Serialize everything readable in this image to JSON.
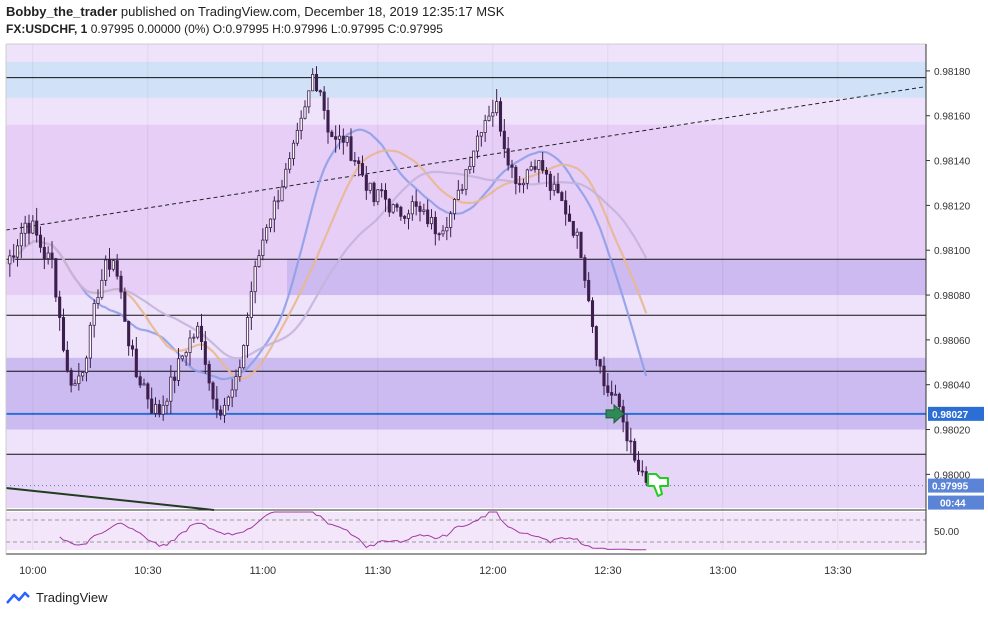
{
  "header": {
    "author": "Bobby_the_trader",
    "published_text": "published on TradingView.com, December 18, 2019 12:35:17 MSK",
    "symbol": "FX:USDCHF, 1",
    "quote": "0.97995 0.00000 (0%) O:0.97995 H:0.97996 L:0.97995 C:0.97995"
  },
  "footer": {
    "brand": "TradingView"
  },
  "colors": {
    "candle": "#3d1f4d",
    "resistance_zone": "#cfe0f7",
    "purple_zone": "#e5ccf7",
    "support_zone": "#c9b8f0",
    "blue_ma": "#8fa0e8",
    "orange_ma": "#e8b890",
    "gray_ma": "#c4b4dc",
    "rsi": "#a03aa0",
    "level_line": "#2b6fd6",
    "arrow": "#2e8b57",
    "thumb": "#22cc22"
  },
  "icons": [
    "right-arrow-icon",
    "thumbs-down-icon",
    "tradingview-logo-icon"
  ],
  "chart_data": {
    "type": "candlestick",
    "symbol": "FX:USDCHF",
    "interval": "1",
    "x_ticks": [
      "10:00",
      "10:30",
      "11:00",
      "11:30",
      "12:00",
      "12:30",
      "13:00",
      "13:30"
    ],
    "y_ticks": [
      "0.98180",
      "0.98160",
      "0.98140",
      "0.98120",
      "0.98100",
      "0.98080",
      "0.98060",
      "0.98040",
      "0.98020",
      "0.98000"
    ],
    "ylim": [
      0.97985,
      0.98192
    ],
    "x_start": "09:53",
    "x_end": "13:53",
    "current_price": "0.97995",
    "time_to_close": "00:44",
    "level_price": "0.98027",
    "rsi_level": "50.00",
    "close_path": [
      [
        "09:53",
        0.98094
      ],
      [
        "09:55",
        0.981
      ],
      [
        "09:58",
        0.98112
      ],
      [
        "10:00",
        0.9811
      ],
      [
        "10:03",
        0.98098
      ],
      [
        "10:05",
        0.98095
      ],
      [
        "10:07",
        0.9807
      ],
      [
        "10:09",
        0.98045
      ],
      [
        "10:11",
        0.9804
      ],
      [
        "10:13",
        0.98048
      ],
      [
        "10:15",
        0.98063
      ],
      [
        "10:17",
        0.98082
      ],
      [
        "10:19",
        0.98092
      ],
      [
        "10:21",
        0.98096
      ],
      [
        "10:23",
        0.9808
      ],
      [
        "10:25",
        0.9806
      ],
      [
        "10:27",
        0.98044
      ],
      [
        "10:29",
        0.9804
      ],
      [
        "10:31",
        0.9803
      ],
      [
        "10:33",
        0.98028
      ],
      [
        "10:35",
        0.98036
      ],
      [
        "10:37",
        0.98044
      ],
      [
        "10:39",
        0.98053
      ],
      [
        "10:41",
        0.9806
      ],
      [
        "10:43",
        0.98064
      ],
      [
        "10:45",
        0.98052
      ],
      [
        "10:47",
        0.98034
      ],
      [
        "10:49",
        0.9803
      ],
      [
        "10:51",
        0.98033
      ],
      [
        "10:53",
        0.9804
      ],
      [
        "10:55",
        0.98058
      ],
      [
        "10:57",
        0.98082
      ],
      [
        "10:59",
        0.98098
      ],
      [
        "11:01",
        0.98112
      ],
      [
        "11:03",
        0.9812
      ],
      [
        "11:05",
        0.9813
      ],
      [
        "11:07",
        0.98138
      ],
      [
        "11:09",
        0.9815
      ],
      [
        "11:11",
        0.98162
      ],
      [
        "11:13",
        0.98178
      ],
      [
        "11:15",
        0.98172
      ],
      [
        "11:17",
        0.98155
      ],
      [
        "11:19",
        0.98148
      ],
      [
        "11:21",
        0.9815
      ],
      [
        "11:23",
        0.98144
      ],
      [
        "11:25",
        0.98138
      ],
      [
        "11:27",
        0.9813
      ],
      [
        "11:29",
        0.98122
      ],
      [
        "11:31",
        0.98126
      ],
      [
        "11:33",
        0.9812
      ],
      [
        "11:35",
        0.98116
      ],
      [
        "11:37",
        0.98118
      ],
      [
        "11:39",
        0.9812
      ],
      [
        "11:41",
        0.98116
      ],
      [
        "11:43",
        0.98114
      ],
      [
        "11:45",
        0.9811
      ],
      [
        "11:47",
        0.98112
      ],
      [
        "11:49",
        0.98116
      ],
      [
        "11:51",
        0.98124
      ],
      [
        "11:53",
        0.98136
      ],
      [
        "11:55",
        0.98146
      ],
      [
        "11:57",
        0.98156
      ],
      [
        "11:59",
        0.98162
      ],
      [
        "12:01",
        0.98164
      ],
      [
        "12:03",
        0.98148
      ],
      [
        "12:05",
        0.98136
      ],
      [
        "12:07",
        0.9813
      ],
      [
        "12:09",
        0.98136
      ],
      [
        "12:11",
        0.9814
      ],
      [
        "12:13",
        0.98136
      ],
      [
        "12:15",
        0.98128
      ],
      [
        "12:17",
        0.98124
      ],
      [
        "12:19",
        0.98118
      ],
      [
        "12:21",
        0.9811
      ],
      [
        "12:23",
        0.981
      ],
      [
        "12:25",
        0.9808
      ],
      [
        "12:27",
        0.98055
      ],
      [
        "12:29",
        0.9804
      ],
      [
        "12:31",
        0.98035
      ],
      [
        "12:33",
        0.9803
      ],
      [
        "12:35",
        0.98018
      ],
      [
        "12:37",
        0.98005
      ],
      [
        "12:39",
        0.97998
      ],
      [
        "12:40",
        0.97995
      ]
    ],
    "horizontal_lines": [
      0.98177,
      0.98096,
      0.98071,
      0.98046,
      0.98027,
      0.98009
    ],
    "zones": [
      {
        "name": "resistance",
        "from": 0.98168,
        "to": 0.98184
      },
      {
        "name": "upper",
        "from": 0.9808,
        "to": 0.98156
      },
      {
        "name": "support",
        "from": 0.9802,
        "to": 0.98052
      }
    ],
    "trend_line": {
      "from": [
        "09:53",
        0.98109
      ],
      "to": [
        "13:53",
        0.98173
      ]
    }
  }
}
